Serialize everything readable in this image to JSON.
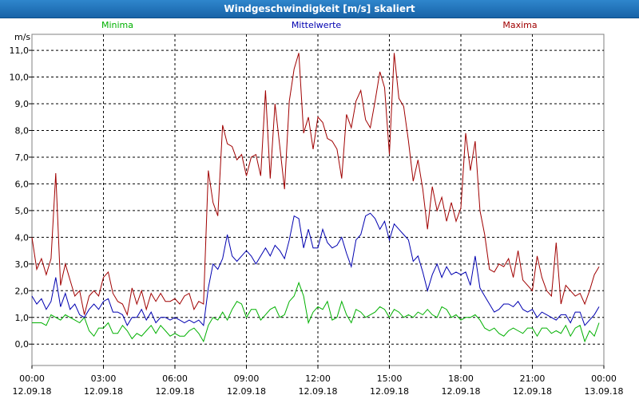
{
  "window": {
    "title": "Windgeschwindigkeit [m/s] skaliert"
  },
  "colors": {
    "minima": "#00b000",
    "mittelwerte": "#0000b0",
    "maxima": "#a00000",
    "grid": "#000000",
    "text": "#000000"
  },
  "chart_data": {
    "type": "line",
    "title": "Windgeschwindigkeit [m/s] skaliert",
    "ylabel": "m/s",
    "xlabel": "",
    "ylim": [
      -0.8,
      11.6
    ],
    "yticks": [
      "0,0",
      "1,0",
      "2,0",
      "3,0",
      "4,0",
      "5,0",
      "6,0",
      "7,0",
      "8,0",
      "9,0",
      "10,0",
      "11,0"
    ],
    "xlim": [
      0,
      24
    ],
    "xticks": [
      {
        "time": "00:00",
        "date": "12.09.18"
      },
      {
        "time": "03:00",
        "date": "12.09.18"
      },
      {
        "time": "06:00",
        "date": "12.09.18"
      },
      {
        "time": "09:00",
        "date": "12.09.18"
      },
      {
        "time": "12:00",
        "date": "12.09.18"
      },
      {
        "time": "15:00",
        "date": "12.09.18"
      },
      {
        "time": "18:00",
        "date": "12.09.18"
      },
      {
        "time": "21:00",
        "date": "12.09.18"
      },
      {
        "time": "00:00",
        "date": "13.09.18"
      }
    ],
    "grid": true,
    "legend_placement": "top",
    "x": [
      0.0,
      0.2,
      0.4,
      0.6,
      0.8,
      1.0,
      1.2,
      1.4,
      1.6,
      1.8,
      2.0,
      2.2,
      2.4,
      2.6,
      2.8,
      3.0,
      3.2,
      3.4,
      3.6,
      3.8,
      4.0,
      4.2,
      4.4,
      4.6,
      4.8,
      5.0,
      5.2,
      5.4,
      5.6,
      5.8,
      6.0,
      6.2,
      6.4,
      6.6,
      6.8,
      7.0,
      7.2,
      7.4,
      7.6,
      7.8,
      8.0,
      8.2,
      8.4,
      8.6,
      8.8,
      9.0,
      9.2,
      9.4,
      9.6,
      9.8,
      10.0,
      10.2,
      10.4,
      10.6,
      10.8,
      11.0,
      11.2,
      11.4,
      11.6,
      11.8,
      12.0,
      12.2,
      12.4,
      12.6,
      12.8,
      13.0,
      13.2,
      13.4,
      13.6,
      13.8,
      14.0,
      14.2,
      14.4,
      14.6,
      14.8,
      15.0,
      15.2,
      15.4,
      15.6,
      15.8,
      16.0,
      16.2,
      16.4,
      16.6,
      16.8,
      17.0,
      17.2,
      17.4,
      17.6,
      17.8,
      18.0,
      18.2,
      18.4,
      18.6,
      18.8,
      19.0,
      19.2,
      19.4,
      19.6,
      19.8,
      20.0,
      20.2,
      20.4,
      20.6,
      20.8,
      21.0,
      21.2,
      21.4,
      21.6,
      21.8,
      22.0,
      22.2,
      22.4,
      22.6,
      22.8,
      23.0,
      23.2,
      23.4,
      23.6,
      23.8
    ],
    "series": [
      {
        "name": "Minima",
        "key": "minima",
        "values": [
          0.8,
          0.8,
          0.8,
          0.7,
          1.1,
          1.0,
          0.9,
          1.1,
          1.0,
          0.9,
          0.8,
          1.0,
          0.5,
          0.3,
          0.6,
          0.6,
          0.8,
          0.4,
          0.4,
          0.7,
          0.5,
          0.2,
          0.4,
          0.3,
          0.5,
          0.7,
          0.4,
          0.7,
          0.5,
          0.3,
          0.4,
          0.3,
          0.3,
          0.5,
          0.6,
          0.4,
          0.1,
          0.7,
          1.0,
          0.9,
          1.2,
          0.9,
          1.3,
          1.6,
          1.5,
          1.0,
          1.3,
          1.3,
          0.9,
          1.1,
          1.3,
          1.4,
          1.0,
          1.1,
          1.6,
          1.8,
          2.3,
          1.8,
          0.8,
          1.2,
          1.4,
          1.3,
          1.6,
          0.9,
          1.0,
          1.6,
          1.1,
          0.8,
          1.3,
          1.2,
          1.0,
          1.1,
          1.2,
          1.4,
          1.3,
          1.0,
          1.3,
          1.2,
          1.0,
          1.1,
          1.0,
          1.2,
          1.1,
          1.3,
          1.1,
          1.0,
          1.4,
          1.3,
          1.0,
          1.1,
          0.9,
          1.0,
          1.0,
          1.1,
          0.9,
          0.6,
          0.5,
          0.6,
          0.4,
          0.3,
          0.5,
          0.6,
          0.5,
          0.4,
          0.6,
          0.6,
          0.3,
          0.6,
          0.6,
          0.4,
          0.5,
          0.4,
          0.7,
          0.3,
          0.6,
          0.7,
          0.1,
          0.5,
          0.3,
          0.8
        ]
      },
      {
        "name": "Mittelwerte",
        "key": "mittelwerte",
        "values": [
          1.8,
          1.5,
          1.7,
          1.3,
          1.6,
          2.5,
          1.4,
          1.9,
          1.3,
          1.5,
          1.1,
          1.0,
          1.3,
          1.5,
          1.3,
          1.6,
          1.7,
          1.2,
          1.2,
          1.1,
          0.7,
          1.0,
          1.0,
          1.3,
          0.9,
          1.2,
          0.8,
          1.0,
          1.0,
          0.9,
          1.0,
          0.9,
          0.8,
          0.9,
          0.8,
          0.9,
          0.7,
          2.1,
          3.0,
          2.8,
          3.2,
          4.1,
          3.3,
          3.1,
          3.3,
          3.5,
          3.3,
          3.0,
          3.3,
          3.6,
          3.3,
          3.7,
          3.5,
          3.2,
          3.9,
          4.8,
          4.7,
          3.6,
          4.3,
          3.6,
          3.6,
          4.3,
          3.8,
          3.6,
          3.7,
          4.0,
          3.4,
          2.9,
          3.9,
          4.1,
          4.8,
          4.9,
          4.7,
          4.3,
          4.6,
          3.9,
          4.5,
          4.3,
          4.1,
          3.9,
          3.1,
          3.3,
          2.7,
          2.0,
          2.6,
          3.0,
          2.5,
          2.9,
          2.6,
          2.7,
          2.6,
          2.7,
          2.2,
          3.3,
          2.1,
          1.8,
          1.5,
          1.2,
          1.3,
          1.5,
          1.5,
          1.4,
          1.6,
          1.3,
          1.2,
          1.3,
          1.0,
          1.2,
          1.1,
          1.0,
          0.9,
          1.1,
          1.1,
          0.8,
          1.2,
          1.2,
          0.7,
          0.9,
          1.1,
          1.4
        ]
      },
      {
        "name": "Maxima",
        "key": "maxima",
        "values": [
          4.0,
          2.8,
          3.2,
          2.6,
          3.2,
          6.4,
          2.2,
          3.0,
          2.4,
          1.8,
          2.0,
          1.1,
          1.8,
          2.0,
          1.8,
          2.5,
          2.7,
          1.9,
          1.6,
          1.5,
          1.1,
          2.1,
          1.5,
          2.0,
          1.3,
          1.9,
          1.6,
          1.9,
          1.6,
          1.6,
          1.7,
          1.5,
          1.8,
          1.9,
          1.3,
          1.6,
          1.5,
          6.5,
          5.3,
          4.8,
          8.2,
          7.5,
          7.4,
          6.9,
          7.1,
          6.3,
          7.0,
          7.1,
          6.3,
          9.5,
          6.2,
          9.0,
          7.4,
          5.8,
          9.1,
          10.3,
          10.9,
          7.9,
          8.5,
          7.3,
          8.5,
          8.3,
          7.7,
          7.6,
          7.3,
          6.2,
          8.6,
          8.1,
          9.1,
          9.5,
          8.4,
          8.1,
          9.1,
          10.2,
          9.6,
          7.1,
          10.9,
          9.2,
          8.9,
          7.6,
          6.1,
          6.9,
          5.8,
          4.3,
          5.9,
          5.0,
          5.5,
          4.6,
          5.3,
          4.6,
          5.1,
          7.9,
          6.5,
          7.6,
          5.0,
          4.1,
          2.8,
          2.7,
          3.0,
          2.9,
          3.2,
          2.5,
          3.5,
          2.4,
          2.2,
          2.0,
          3.3,
          2.5,
          2.0,
          1.8,
          3.8,
          1.5,
          2.2,
          2.0,
          1.8,
          1.9,
          1.5,
          2.0,
          2.6,
          2.9
        ]
      }
    ]
  }
}
